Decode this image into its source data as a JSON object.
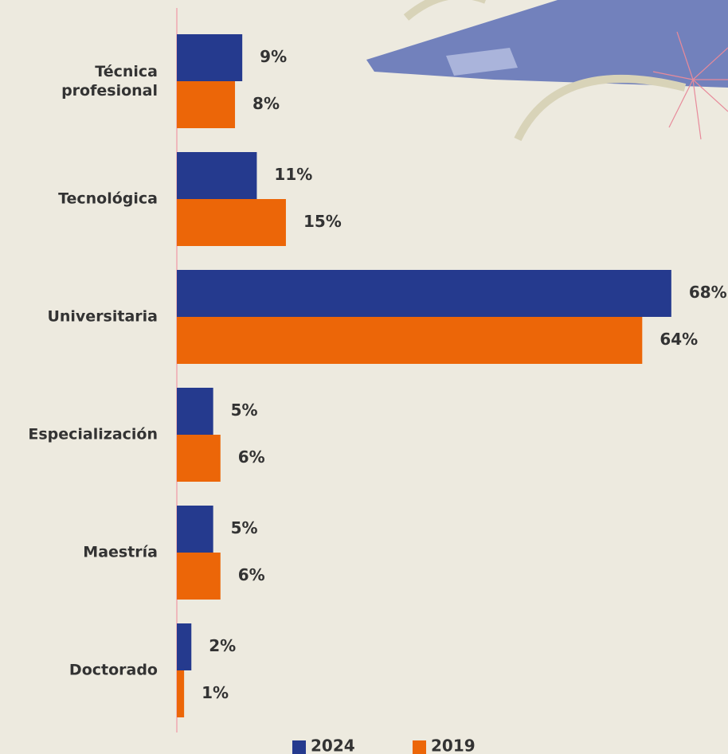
{
  "chart_data": {
    "type": "bar",
    "orientation": "horizontal",
    "categories": [
      "Técnica\nprofesional",
      "Tecnológica",
      "Universitaria",
      "Especialización",
      "Maestría",
      "Doctorado"
    ],
    "series": [
      {
        "name": "2024",
        "color": "#253a8e",
        "values": [
          9,
          11,
          68,
          5,
          5,
          2
        ],
        "value_labels": [
          "9%",
          "11%",
          "68%",
          "5%",
          "5%",
          "2%"
        ]
      },
      {
        "name": "2019",
        "color": "#ec6608",
        "values": [
          8,
          15,
          64,
          6,
          6,
          1
        ],
        "value_labels": [
          "8%",
          "15%",
          "64%",
          "6%",
          "6%",
          "1%"
        ]
      }
    ]
  }
}
